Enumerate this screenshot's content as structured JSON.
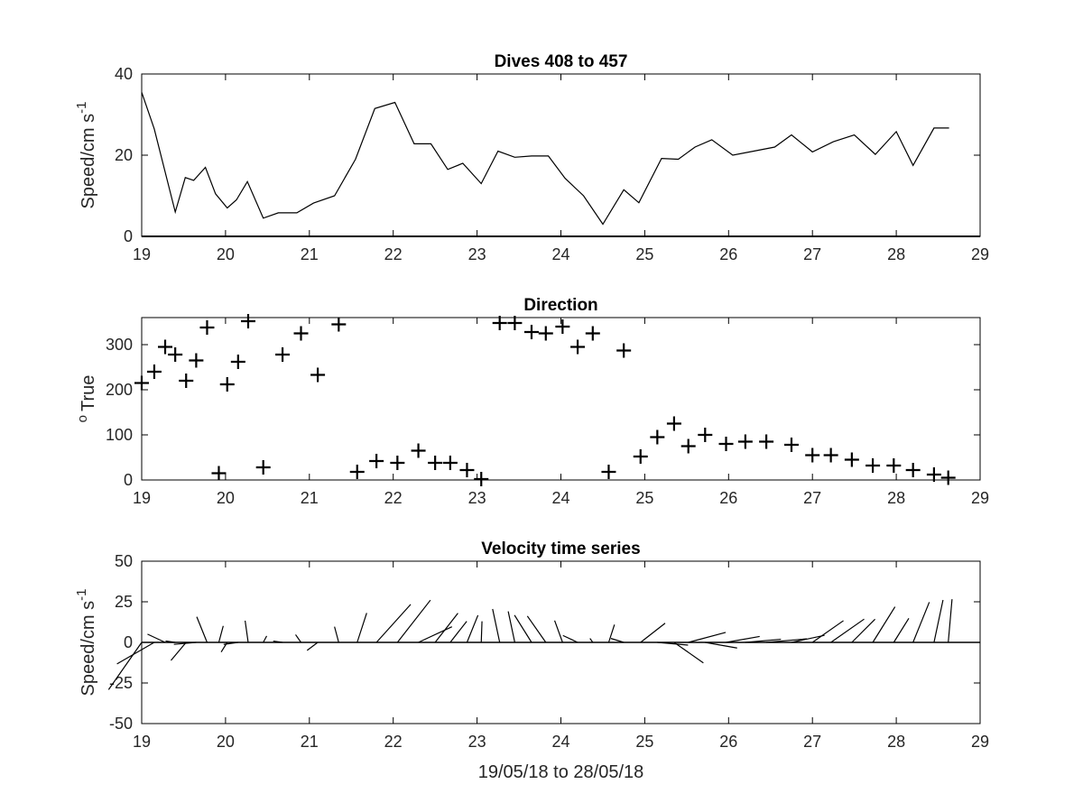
{
  "chart_data": [
    {
      "type": "line",
      "title": "Dives 408 to 457",
      "ylabel_main": "Speed/cm s",
      "ylabel_sup": "-1",
      "xlim": [
        19,
        29
      ],
      "ylim": [
        0,
        40
      ],
      "xticks": [
        "19",
        "20",
        "21",
        "22",
        "23",
        "24",
        "25",
        "26",
        "27",
        "28",
        "29"
      ],
      "yticks": [
        "0",
        "20",
        "40"
      ],
      "x": [
        19.0,
        19.15,
        19.4,
        19.52,
        19.62,
        19.76,
        19.88,
        20.02,
        20.13,
        20.26,
        20.45,
        20.63,
        20.85,
        21.05,
        21.3,
        21.55,
        21.78,
        22.02,
        22.25,
        22.45,
        22.65,
        22.83,
        23.05,
        23.25,
        23.45,
        23.65,
        23.85,
        24.05,
        24.27,
        24.5,
        24.75,
        24.93,
        25.2,
        25.4,
        25.6,
        25.8,
        26.05,
        26.3,
        26.55,
        26.75,
        27.0,
        27.25,
        27.5,
        27.75,
        28.0,
        28.2,
        28.45,
        28.63
      ],
      "y": [
        35.5,
        26.5,
        6,
        14.5,
        13.8,
        17,
        10.5,
        7,
        9,
        13.5,
        4.5,
        5.8,
        5.8,
        8.2,
        10,
        19,
        31.5,
        33,
        22.8,
        22.8,
        16.5,
        18,
        13,
        21,
        19.5,
        19.8,
        19.8,
        14.3,
        10,
        3,
        11.5,
        8.3,
        19.2,
        19,
        22,
        23.8,
        20,
        21,
        22,
        25,
        20.8,
        23.3,
        25,
        20.2,
        25.8,
        17.5,
        26.7,
        26.7
      ]
    },
    {
      "type": "scatter",
      "title": "Direction",
      "ylabel_main": "True",
      "ylabel_sup": "o",
      "xlim": [
        19,
        29
      ],
      "ylim": [
        0,
        360
      ],
      "xticks": [
        "19",
        "20",
        "21",
        "22",
        "23",
        "24",
        "25",
        "26",
        "27",
        "28",
        "29"
      ],
      "yticks": [
        "0",
        "100",
        "200",
        "300"
      ],
      "x": [
        19.0,
        19.15,
        19.28,
        19.4,
        19.53,
        19.65,
        19.78,
        19.92,
        20.02,
        20.15,
        20.27,
        20.45,
        20.68,
        20.9,
        21.1,
        21.35,
        21.57,
        21.8,
        22.05,
        22.3,
        22.5,
        22.68,
        22.88,
        23.05,
        23.27,
        23.45,
        23.65,
        23.82,
        24.02,
        24.2,
        24.38,
        24.57,
        24.75,
        24.95,
        25.15,
        25.35,
        25.52,
        25.72,
        25.97,
        26.2,
        26.45,
        26.75,
        27.0,
        27.22,
        27.47,
        27.72,
        27.97,
        28.2,
        28.45,
        28.62
      ],
      "y": [
        215,
        240,
        295,
        278,
        220,
        265,
        338,
        15,
        212,
        262,
        352,
        28,
        278,
        325,
        233,
        345,
        18,
        42,
        38,
        65,
        38,
        38,
        22,
        2,
        348,
        348,
        328,
        325,
        340,
        295,
        325,
        18,
        287,
        52,
        95,
        125,
        75,
        100,
        80,
        85,
        85,
        78,
        55,
        55,
        45,
        32,
        32,
        22,
        12,
        5
      ]
    },
    {
      "type": "stick",
      "title": "Velocity time series",
      "ylabel_main": "Speed/cm s",
      "ylabel_sup": "-1",
      "xlabel": "19/05/18 to 28/05/18",
      "xlim": [
        19,
        29
      ],
      "ylim": [
        -50,
        50
      ],
      "xticks": [
        "19",
        "20",
        "21",
        "22",
        "23",
        "24",
        "25",
        "26",
        "27",
        "28",
        "29"
      ],
      "yticks": [
        "-50",
        "-25",
        "0",
        "25",
        "50"
      ],
      "x": [
        19.0,
        19.15,
        19.28,
        19.4,
        19.53,
        19.65,
        19.78,
        19.92,
        20.02,
        20.15,
        20.27,
        20.45,
        20.68,
        20.9,
        21.1,
        21.35,
        21.57,
        21.8,
        22.05,
        22.3,
        22.5,
        22.68,
        22.88,
        23.05,
        23.27,
        23.45,
        23.65,
        23.82,
        24.02,
        24.2,
        24.38,
        24.57,
        24.75,
        24.95,
        25.15,
        25.35,
        25.52,
        25.72,
        25.97,
        26.2,
        26.45,
        26.75,
        27.0,
        27.22,
        27.47,
        27.72,
        27.97,
        28.2,
        28.45,
        28.62
      ],
      "speed": [
        35.5,
        26.5,
        12,
        6,
        14.5,
        13.8,
        17,
        10.5,
        7,
        9,
        13.5,
        4.5,
        5.8,
        5.8,
        8.2,
        10,
        19,
        31.5,
        33,
        22.8,
        22.8,
        16.5,
        18,
        13,
        21,
        19.5,
        19.8,
        19.8,
        14.3,
        10,
        3,
        11.5,
        8.3,
        19.2,
        19,
        22,
        23.8,
        20,
        21,
        22,
        25,
        20.8,
        23.3,
        25,
        20.2,
        25.8,
        17.5,
        26.7,
        26.7,
        26.7
      ],
      "direction": [
        215,
        240,
        295,
        278,
        220,
        265,
        338,
        15,
        212,
        262,
        352,
        28,
        278,
        325,
        233,
        345,
        18,
        42,
        38,
        65,
        38,
        38,
        22,
        2,
        348,
        348,
        328,
        325,
        340,
        295,
        325,
        18,
        287,
        52,
        95,
        125,
        75,
        100,
        80,
        85,
        85,
        78,
        55,
        55,
        45,
        32,
        32,
        22,
        12,
        5
      ]
    }
  ]
}
